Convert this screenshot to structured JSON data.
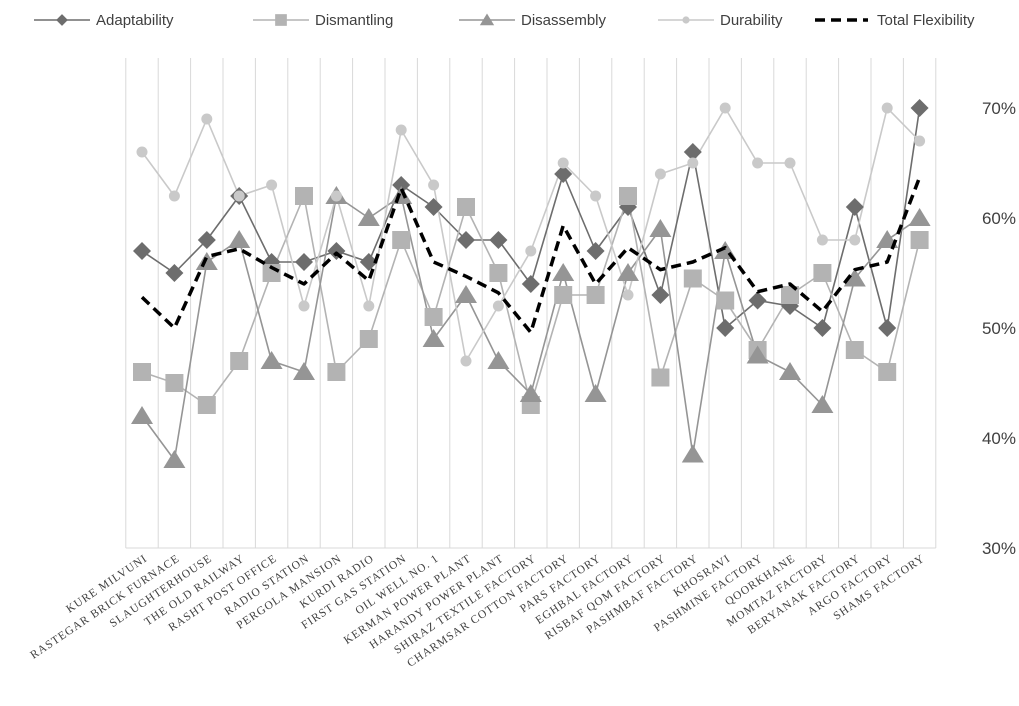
{
  "chart_data": {
    "type": "line",
    "title": "",
    "xlabel": "",
    "ylabel": "",
    "ylim": [
      0.3,
      0.72
    ],
    "yticks": [
      "30%",
      "40%",
      "50%",
      "60%",
      "70%"
    ],
    "ytick_values": [
      0.3,
      0.4,
      0.5,
      0.6,
      0.7
    ],
    "y_axis_side": "right",
    "grid": "vertical",
    "legend_position": "top",
    "categories": [
      "KURE MILVUNI",
      "RASTEGAR BRICK FURNACE",
      "SLAUGHTERHOUSE",
      "THE OLD RAILWAY",
      "RASHT POST OFFICE",
      "RADIO STATION",
      "PERGOLA MANSION",
      "KURDI RADIO",
      "FIRST GAS STATION",
      "OIL WELL NO. 1",
      "KERMAN POWER PLANT",
      "HARANDY POWER PLANT",
      "SHIRAZ TEXTILE FACTORY",
      "CHARMSAR COTTON FACTORY",
      "PARS FACTORY",
      "EGHBAL FACTORY",
      "RISBAF QOM FACTORY",
      "PASHMBAF FACTORY",
      "KHOSRAVI",
      "PASHMINE FACTORY",
      "QOORKHANE",
      "MOMTAZ FACTORY",
      "BERYANAK FACTORY",
      "ARGO FACTORY",
      "SHAMS FACTORY"
    ],
    "series": [
      {
        "name": "Adaptability",
        "color": "#6d6d6d",
        "marker": "diamond",
        "values": [
          0.57,
          0.55,
          0.58,
          0.62,
          0.56,
          0.56,
          0.57,
          0.56,
          0.63,
          0.61,
          0.58,
          0.58,
          0.54,
          0.64,
          0.57,
          0.61,
          0.53,
          0.66,
          0.5,
          0.525,
          0.52,
          0.5,
          0.61,
          0.5,
          0.7
        ]
      },
      {
        "name": "Dismantling",
        "color": "#b3b3b3",
        "marker": "square",
        "values": [
          0.46,
          0.45,
          0.43,
          0.47,
          0.55,
          0.62,
          0.46,
          0.49,
          0.58,
          0.51,
          0.61,
          0.55,
          0.43,
          0.53,
          0.53,
          0.62,
          0.455,
          0.545,
          0.525,
          0.48,
          0.53,
          0.55,
          0.48,
          0.46,
          0.58
        ]
      },
      {
        "name": "Disassembly",
        "color": "#959595",
        "marker": "triangle",
        "values": [
          0.42,
          0.38,
          0.56,
          0.58,
          0.47,
          0.46,
          0.62,
          0.6,
          0.62,
          0.49,
          0.53,
          0.47,
          0.44,
          0.55,
          0.44,
          0.55,
          0.59,
          0.385,
          0.57,
          0.475,
          0.46,
          0.43,
          0.545,
          0.58,
          0.6
        ]
      },
      {
        "name": "Durability",
        "color": "#c9c9c9",
        "marker": "circle",
        "values": [
          0.66,
          0.62,
          0.69,
          0.62,
          0.63,
          0.52,
          0.62,
          0.52,
          0.68,
          0.63,
          0.47,
          0.52,
          0.57,
          0.65,
          0.62,
          0.53,
          0.64,
          0.65,
          0.7,
          0.65,
          0.65,
          0.58,
          0.58,
          0.7,
          0.67
        ]
      },
      {
        "name": "Total Flexibility",
        "color": "#000000",
        "marker": "none",
        "dashed": true,
        "values": [
          0.528,
          0.5,
          0.565,
          0.572,
          0.555,
          0.54,
          0.568,
          0.543,
          0.627,
          0.56,
          0.547,
          0.532,
          0.496,
          0.593,
          0.54,
          0.573,
          0.553,
          0.56,
          0.573,
          0.533,
          0.54,
          0.515,
          0.553,
          0.56,
          0.637
        ]
      }
    ]
  }
}
